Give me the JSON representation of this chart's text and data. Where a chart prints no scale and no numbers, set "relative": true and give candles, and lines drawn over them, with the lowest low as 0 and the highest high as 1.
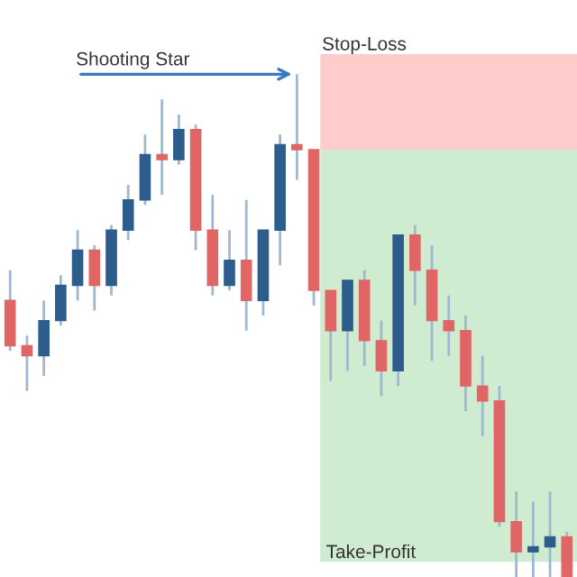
{
  "chart_data": {
    "type": "candlestick",
    "relative": true,
    "categories": [
      null,
      null,
      null,
      null,
      null,
      null,
      null,
      null,
      null,
      null,
      null,
      null,
      null,
      null,
      null,
      null,
      null,
      null,
      null,
      null,
      null,
      null,
      null,
      null,
      null,
      null,
      null,
      null,
      null,
      null,
      null,
      null,
      null,
      null
    ],
    "ohlc": [
      [
        0.55,
        0.61,
        0.45,
        0.46
      ],
      [
        0.46,
        0.48,
        0.37,
        0.44
      ],
      [
        0.44,
        0.55,
        0.4,
        0.51
      ],
      [
        0.51,
        0.6,
        0.5,
        0.58
      ],
      [
        0.58,
        0.69,
        0.55,
        0.65
      ],
      [
        0.65,
        0.66,
        0.53,
        0.58
      ],
      [
        0.58,
        0.7,
        0.56,
        0.69
      ],
      [
        0.69,
        0.78,
        0.67,
        0.75
      ],
      [
        0.75,
        0.88,
        0.74,
        0.84
      ],
      [
        0.84,
        0.95,
        0.76,
        0.83
      ],
      [
        0.83,
        0.92,
        0.82,
        0.89
      ],
      [
        0.89,
        0.9,
        0.65,
        0.69
      ],
      [
        0.69,
        0.76,
        0.56,
        0.58
      ],
      [
        0.58,
        0.69,
        0.57,
        0.63
      ],
      [
        0.63,
        0.75,
        0.49,
        0.55
      ],
      [
        0.55,
        0.69,
        0.52,
        0.69
      ],
      [
        0.69,
        0.88,
        0.62,
        0.86
      ],
      [
        0.86,
        1.0,
        0.79,
        0.85
      ],
      [
        0.85,
        0.85,
        0.54,
        0.57
      ],
      [
        0.57,
        0.57,
        0.39,
        0.49
      ],
      [
        0.49,
        0.59,
        0.41,
        0.59
      ],
      [
        0.59,
        0.61,
        0.42,
        0.47
      ],
      [
        0.47,
        0.51,
        0.36,
        0.41
      ],
      [
        0.41,
        0.68,
        0.38,
        0.68
      ],
      [
        0.68,
        0.7,
        0.54,
        0.61
      ],
      [
        0.61,
        0.66,
        0.43,
        0.51
      ],
      [
        0.51,
        0.56,
        0.44,
        0.49
      ],
      [
        0.49,
        0.52,
        0.33,
        0.38
      ],
      [
        0.38,
        0.44,
        0.28,
        0.35
      ],
      [
        0.35,
        0.38,
        0.1,
        0.11
      ],
      [
        0.11,
        0.17,
        0,
        0.05
      ],
      [
        0.05,
        0.15,
        0,
        0.06
      ],
      [
        0.06,
        0.17,
        0,
        0.08
      ],
      [
        0.08,
        0.09,
        0,
        0
      ]
    ],
    "colors": [
      "#e06666",
      "#e06666",
      "#2d5d8c",
      "#2d5d8c",
      "#2d5d8c",
      "#e06666",
      "#2d5d8c",
      "#2d5d8c",
      "#2d5d8c",
      "#e06666",
      "#2d5d8c",
      "#e06666",
      "#e06666",
      "#2d5d8c",
      "#e06666",
      "#2d5d8c",
      "#2d5d8c",
      "#e06666",
      "#e06666",
      "#e06666",
      "#2d5d8c",
      "#e06666",
      "#e06666",
      "#2d5d8c",
      "#e06666",
      "#e06666",
      "#e06666",
      "#e06666",
      "#e06666",
      "#e06666",
      "#e06666",
      "#2d5d8c",
      "#2d5d8c",
      "#e06666"
    ],
    "bands": [
      {
        "axis": "y",
        "from": 0.85,
        "to": 1.04,
        "label": "Stop-Loss",
        "color": "#ffcccc"
      },
      {
        "axis": "y",
        "from": 0.03,
        "to": 0.85,
        "label": "Take-Profit",
        "color": "#d0ecd0"
      }
    ],
    "annotations": [
      "Shooting Star"
    ]
  }
}
